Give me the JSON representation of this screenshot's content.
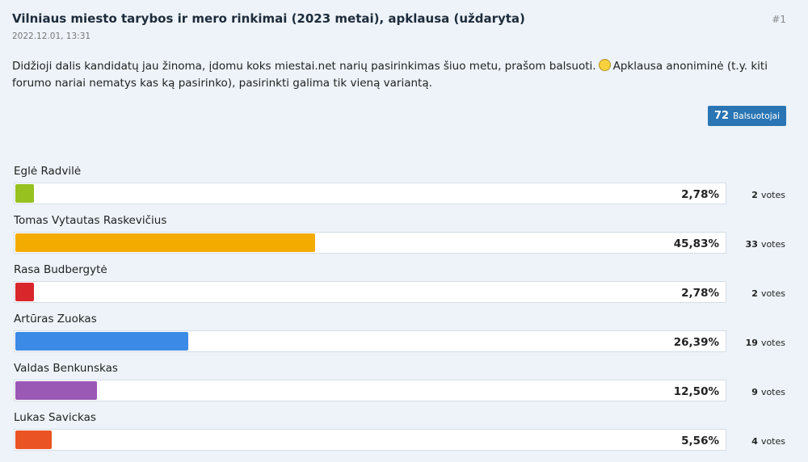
{
  "header": {
    "title": "Vilniaus miesto tarybos ir mero rinkimai (2023 metai), apklausa (uždaryta)",
    "date": "2022.12.01, 13:31",
    "post_number": "#1"
  },
  "body": {
    "text_before": "Didžioji dalis kandidatų jau žinoma, įdomu koks miestai.net narių pasirinkimas šiuo metu, prašom balsuoti.",
    "text_after": "Apklausa anoniminė (t.y. kiti forumo nariai nematys kas ką pasirinko), pasirinkti galima tik vieną variantą."
  },
  "voters": {
    "count": 72,
    "label": "Balsuotojai"
  },
  "poll": {
    "votes_label": "votes",
    "options": [
      {
        "name": "Eglė Radvilė",
        "color": "#97c11f",
        "percent": 2.78,
        "percent_label": "2,78%",
        "votes": 2
      },
      {
        "name": "Tomas Vytautas Raskevičius",
        "color": "#f4ab00",
        "percent": 45.83,
        "percent_label": "45,83%",
        "votes": 33
      },
      {
        "name": "Rasa Budbergytė",
        "color": "#d9262a",
        "percent": 2.78,
        "percent_label": "2,78%",
        "votes": 2
      },
      {
        "name": "Artūras Zuokas",
        "color": "#3b8ae6",
        "percent": 26.39,
        "percent_label": "26,39%",
        "votes": 19
      },
      {
        "name": "Valdas Benkunskas",
        "color": "#9b59b6",
        "percent": 12.5,
        "percent_label": "12,50%",
        "votes": 9
      },
      {
        "name": "Lukas Savickas",
        "color": "#ea5424",
        "percent": 5.56,
        "percent_label": "5,56%",
        "votes": 4
      }
    ]
  }
}
